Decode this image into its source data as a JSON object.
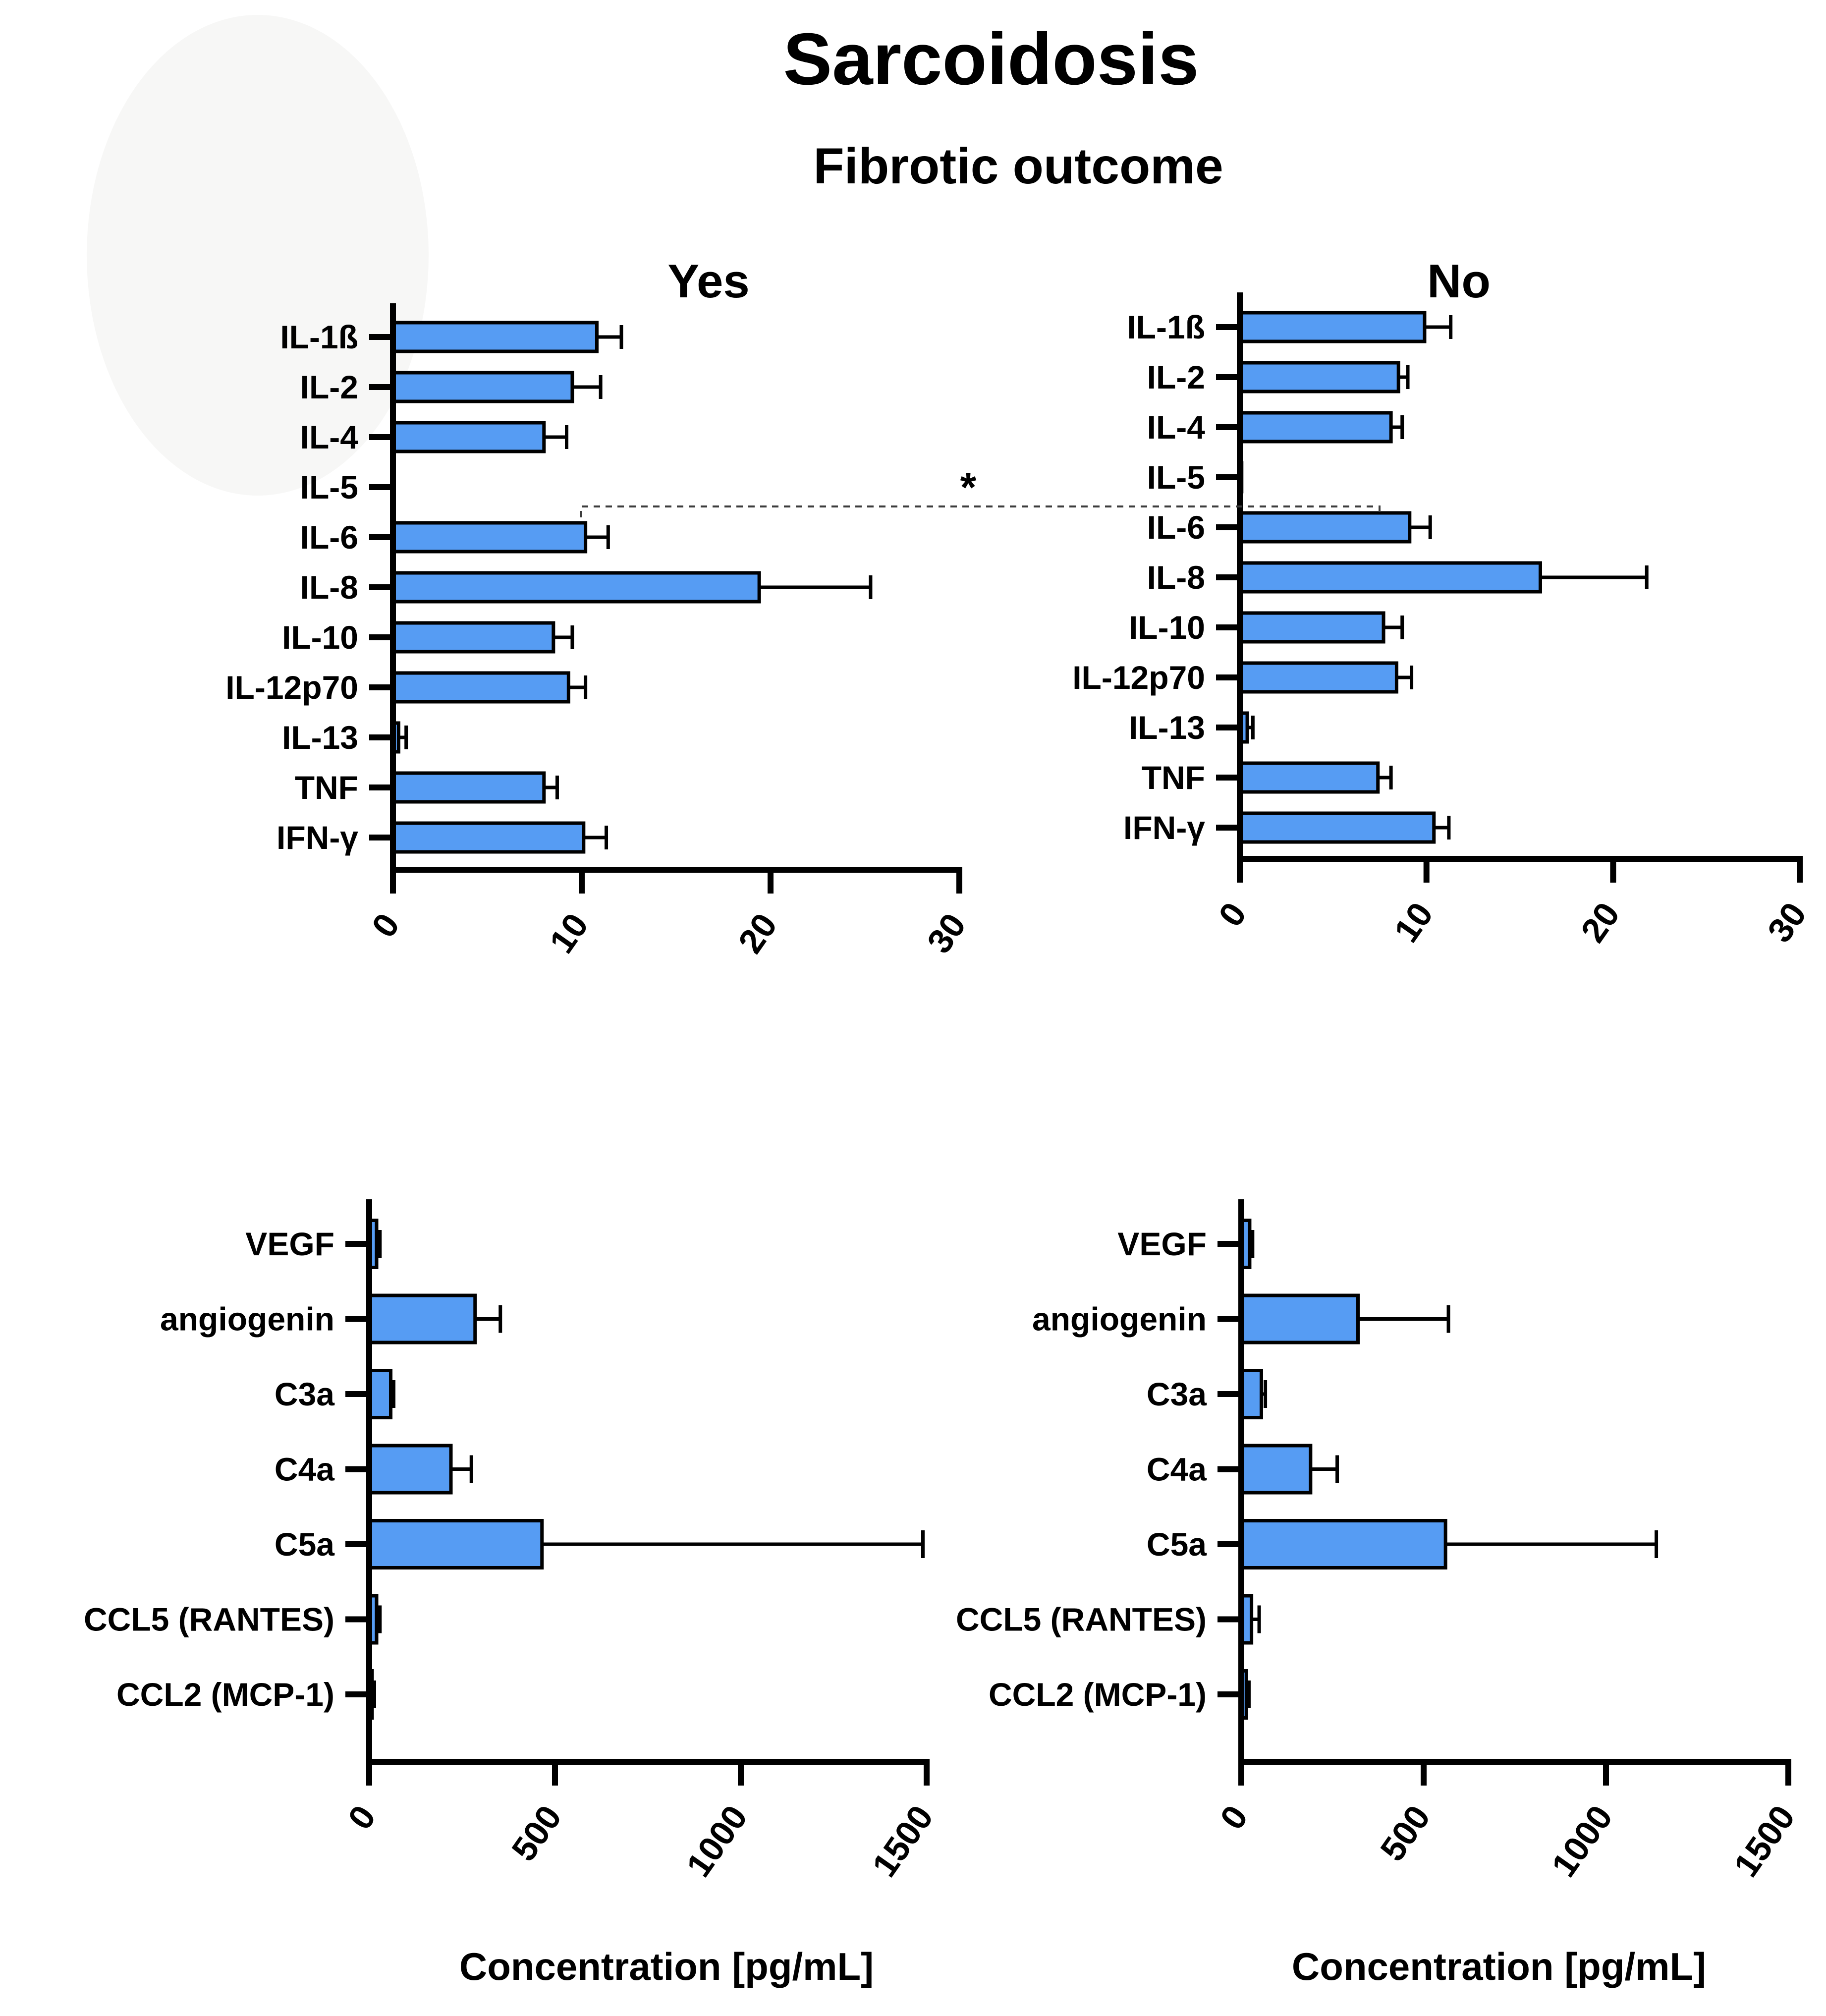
{
  "figure": {
    "title": "Sarcoidosis",
    "subtitle": "Fibrotic outcome",
    "significance": {
      "symbol": "*"
    }
  },
  "colors": {
    "bar_fill": "#569CF3",
    "outline": "#000000",
    "dashed_line": "#3C3C3C"
  },
  "chart_data": [
    {
      "id": "cytokines-fibrotic-yes",
      "type": "bar",
      "orientation": "horizontal",
      "group": "Yes",
      "categories": [
        "IL-1ß",
        "IL-2",
        "IL-4",
        "IL-5",
        "IL-6",
        "IL-8",
        "IL-10",
        "IL-12p70",
        "IL-13",
        "TNF",
        "IFN-γ"
      ],
      "values": [
        10.8,
        9.5,
        8.0,
        0,
        10.2,
        19.4,
        8.5,
        9.3,
        0.3,
        8.0,
        10.1
      ],
      "errors_plus": [
        1.3,
        1.5,
        1.2,
        0,
        1.2,
        5.9,
        1.0,
        0.9,
        0.4,
        0.7,
        1.2
      ],
      "xlim": [
        0,
        30
      ],
      "xticks": [
        0,
        10,
        20,
        30
      ],
      "xlabel": ""
    },
    {
      "id": "cytokines-fibrotic-no",
      "type": "bar",
      "orientation": "horizontal",
      "group": "No",
      "categories": [
        "IL-1ß",
        "IL-2",
        "IL-4",
        "IL-5",
        "IL-6",
        "IL-8",
        "IL-10",
        "IL-12p70",
        "IL-13",
        "TNF",
        "IFN-γ"
      ],
      "values": [
        9.9,
        8.5,
        8.1,
        0.1,
        9.1,
        16.1,
        7.7,
        8.4,
        0.4,
        7.4,
        10.4
      ],
      "errors_plus": [
        1.4,
        0.5,
        0.6,
        0,
        1.1,
        5.7,
        1.0,
        0.8,
        0.3,
        0.7,
        0.8
      ],
      "xlim": [
        0,
        30
      ],
      "xticks": [
        0,
        10,
        20,
        30
      ],
      "xlabel": ""
    },
    {
      "id": "mediators-fibrotic-yes",
      "type": "bar",
      "orientation": "horizontal",
      "group": "Yes",
      "categories": [
        "VEGF",
        "angiogenin",
        "C3a",
        "C4a",
        "C5a",
        "CCL5 (RANTES)",
        "CCL2 (MCP-1)"
      ],
      "values": [
        20,
        285,
        58,
        220,
        465,
        20,
        8
      ],
      "errors_plus": [
        9,
        68,
        8,
        55,
        1025,
        9,
        6
      ],
      "xlim": [
        0,
        1500
      ],
      "xticks": [
        0,
        500,
        1000,
        1500
      ],
      "xlabel": "Concentration [pg/mL]"
    },
    {
      "id": "mediators-fibrotic-no",
      "type": "bar",
      "orientation": "horizontal",
      "group": "No",
      "categories": [
        "VEGF",
        "angiogenin",
        "C3a",
        "C4a",
        "C5a",
        "CCL5 (RANTES)",
        "CCL2 (MCP-1)"
      ],
      "values": [
        23,
        320,
        55,
        190,
        560,
        28,
        14
      ],
      "errors_plus": [
        8,
        248,
        11,
        73,
        578,
        21,
        7
      ],
      "xlim": [
        0,
        1500
      ],
      "xticks": [
        0,
        500,
        1000,
        1500
      ],
      "xlabel": "Concentration [pg/mL]"
    }
  ]
}
